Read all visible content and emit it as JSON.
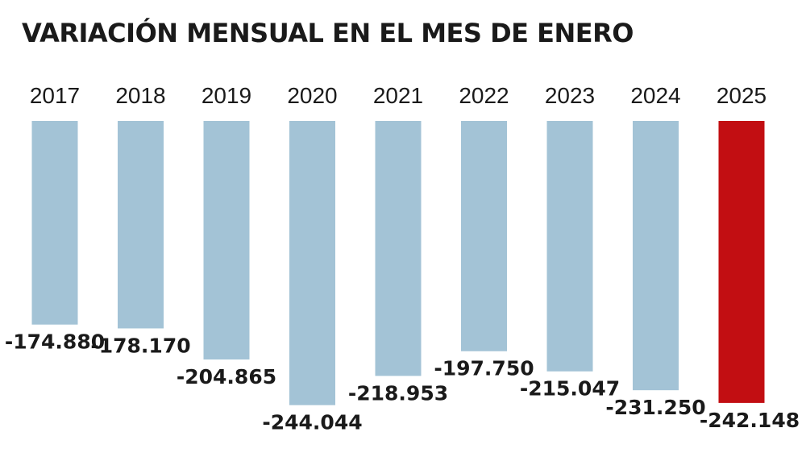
{
  "chart_data": {
    "type": "bar",
    "title": "VARIACIÓN MENSUAL EN EL MES DE ENERO",
    "categories": [
      "2017",
      "2018",
      "2019",
      "2020",
      "2021",
      "2022",
      "2023",
      "2024",
      "2025"
    ],
    "values": [
      -174880,
      -178170,
      -204865,
      -244044,
      -218953,
      -197750,
      -215047,
      -231250,
      -242148
    ],
    "value_labels": [
      "-174.880",
      "-178.170",
      "-204.865",
      "-244.044",
      "-218.953",
      "-197.750",
      "-215.047",
      "-231.250",
      "-242.148"
    ],
    "ylim": [
      -250000,
      0
    ],
    "grid": false,
    "legend": "none",
    "colors": {
      "default_bar": "#a3c3d6",
      "highlight_bar": "#c20e12"
    },
    "highlight_category": "2025"
  }
}
